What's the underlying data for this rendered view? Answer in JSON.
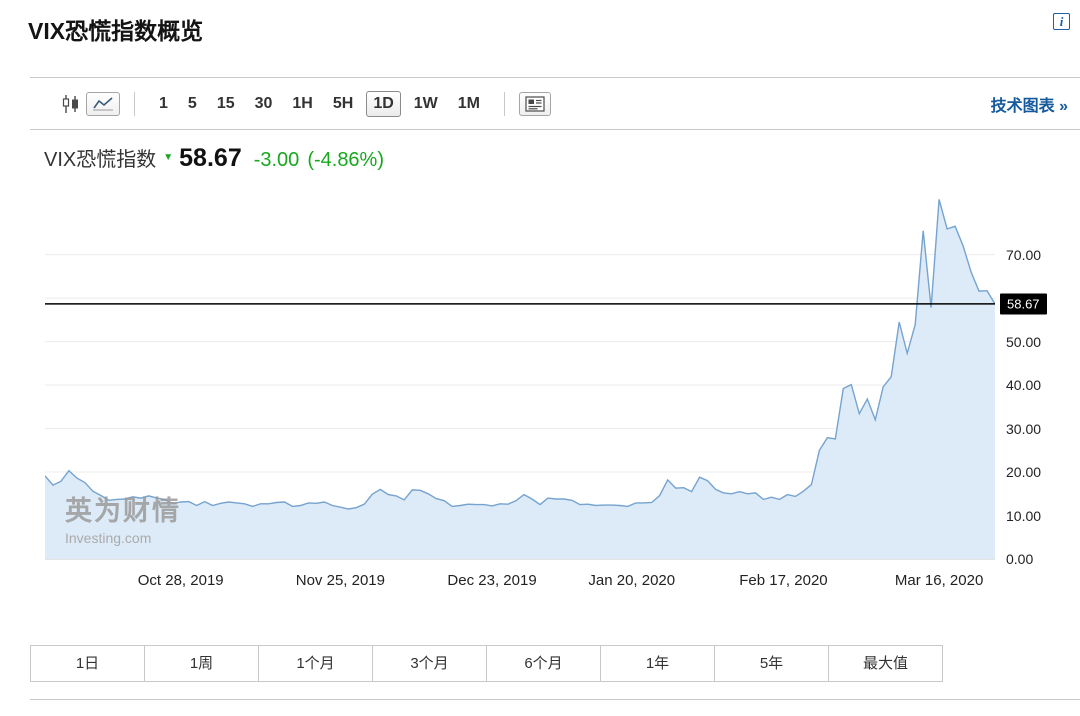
{
  "page": {
    "title": "VIX恐慌指数概览"
  },
  "header": {
    "info_label": "i"
  },
  "toolbar": {
    "chart_types": [
      {
        "name": "candlestick",
        "selected": false
      },
      {
        "name": "line",
        "selected": true
      }
    ],
    "intervals": [
      {
        "label": "1",
        "selected": false
      },
      {
        "label": "5",
        "selected": false
      },
      {
        "label": "15",
        "selected": false
      },
      {
        "label": "30",
        "selected": false
      },
      {
        "label": "1H",
        "selected": false
      },
      {
        "label": "5H",
        "selected": false
      },
      {
        "label": "1D",
        "selected": true
      },
      {
        "label": "1W",
        "selected": false
      },
      {
        "label": "1M",
        "selected": false
      }
    ],
    "tech_chart_link": "技术图表 »"
  },
  "quote": {
    "name": "VIX恐慌指数",
    "direction": "down",
    "price": "58.67",
    "change": "-3.00",
    "change_percent": "(-4.86%)"
  },
  "colors": {
    "change_green": "#17a81e",
    "link_blue": "#15599e",
    "last_price_tag_bg": "#000000",
    "area_fill": "#dcebf7",
    "line": "#76a3cf"
  },
  "watermark": {
    "name": "英为财情",
    "domain": "Investing.com"
  },
  "ranges": [
    {
      "label": "1日"
    },
    {
      "label": "1周"
    },
    {
      "label": "1个月"
    },
    {
      "label": "3个月"
    },
    {
      "label": "6个月"
    },
    {
      "label": "1年"
    },
    {
      "label": "5年"
    },
    {
      "label": "最大值"
    }
  ],
  "chart_data": {
    "type": "area",
    "series_name": "VIX恐慌指数",
    "title": "",
    "xlabel": "",
    "ylabel": "",
    "grid": true,
    "legend": false,
    "ylim": [
      0,
      86
    ],
    "y_ticks": [
      0,
      10,
      20,
      30,
      40,
      50,
      60,
      70
    ],
    "y_tick_labels": [
      "0.00",
      "10.00",
      "20.00",
      "30.00",
      "40.00",
      "50.00",
      "60.00",
      "70.00"
    ],
    "y_axis_position": "right",
    "last_value": 58.67,
    "last_value_label": "58.67",
    "x_tick_labels": [
      "Oct 28, 2019",
      "Nov 25, 2019",
      "Dec 23, 2019",
      "Jan 20, 2020",
      "Feb 17, 2020",
      "Mar 16, 2020"
    ],
    "x_tick_indices": [
      17,
      37,
      56,
      73.5,
      92.5,
      112
    ],
    "line_color": "#76a3cf",
    "fill_color": "#dcebf7",
    "last_line_color": "#000000",
    "values": [
      19.1,
      17.0,
      17.9,
      20.3,
      18.6,
      17.6,
      15.6,
      14.6,
      13.5,
      13.7,
      13.8,
      14.3,
      14.0,
      14.5,
      14.0,
      13.7,
      12.7,
      13.1,
      13.2,
      12.3,
      13.2,
      12.3,
      12.8,
      13.1,
      12.9,
      12.7,
      12.1,
      12.7,
      12.7,
      13.0,
      13.1,
      12.1,
      12.3,
      12.9,
      12.8,
      13.1,
      12.3,
      11.9,
      11.5,
      11.8,
      12.6,
      14.9,
      16.0,
      14.8,
      14.5,
      13.6,
      15.9,
      15.8,
      15.0,
      13.9,
      13.4,
      12.1,
      12.3,
      12.6,
      12.5,
      12.5,
      12.2,
      12.7,
      12.6,
      13.4,
      14.8,
      13.8,
      12.5,
      14.0,
      13.8,
      13.8,
      13.5,
      12.5,
      12.6,
      12.3,
      12.4,
      12.4,
      12.3,
      12.1,
      12.9,
      12.9,
      13.0,
      14.6,
      18.2,
      16.3,
      16.4,
      15.5,
      18.8,
      18.0,
      16.0,
      15.2,
      15.0,
      15.5,
      15.0,
      15.2,
      13.7,
      14.2,
      13.7,
      14.8,
      14.4,
      15.6,
      17.1,
      25.0,
      27.9,
      27.6,
      39.2,
      40.1,
      33.4,
      36.8,
      32.0,
      39.6,
      41.9,
      54.5,
      47.3,
      53.9,
      75.5,
      57.8,
      82.7,
      75.9,
      76.5,
      72.0,
      66.0,
      61.6,
      61.7,
      58.67
    ]
  }
}
